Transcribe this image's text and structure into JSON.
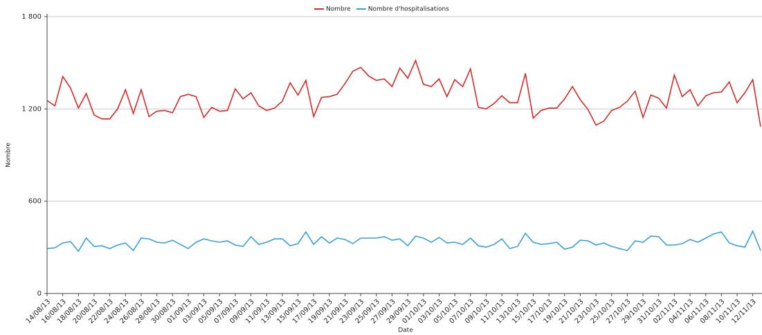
{
  "chart_data": {
    "type": "line",
    "x_label": "Date",
    "y_label": "Nombre",
    "categories": [
      "14/08/13",
      null,
      "16/08/13",
      null,
      "18/08/13",
      null,
      "20/08/13",
      null,
      "22/08/13",
      null,
      "24/08/13",
      null,
      "26/08/13",
      null,
      "28/08/13",
      null,
      "30/08/13",
      null,
      "01/09/13",
      null,
      "03/09/13",
      null,
      "05/09/13",
      null,
      "07/09/13",
      null,
      "09/09/13",
      null,
      "11/09/13",
      null,
      "13/09/13",
      null,
      "15/09/13",
      null,
      "17/09/13",
      null,
      "19/09/13",
      null,
      "21/09/13",
      null,
      "23/09/13",
      null,
      "25/09/13",
      null,
      "27/09/13",
      null,
      "29/09/13",
      null,
      "01/10/13",
      null,
      "03/10/13",
      null,
      "05/10/13",
      null,
      "07/10/13",
      null,
      "09/10/13",
      null,
      "11/10/13",
      null,
      "13/10/13",
      null,
      "15/10/13",
      null,
      "17/10/13",
      null,
      "19/10/13",
      null,
      "21/10/13",
      null,
      "23/10/13",
      null,
      "25/10/13",
      null,
      "27/10/13",
      null,
      "29/10/13",
      null,
      "31/10/13",
      null,
      "02/11/13",
      null,
      "04/11/13",
      null,
      "06/11/13",
      null,
      "08/11/13",
      null,
      "10/11/13",
      null,
      "12/11/13",
      null
    ],
    "series": [
      {
        "name": "Nombre",
        "color": "#d42a2a",
        "values": [
          1255,
          1220,
          1410,
          1335,
          1205,
          1300,
          1160,
          1135,
          1135,
          1200,
          1325,
          1170,
          1325,
          1150,
          1185,
          1190,
          1175,
          1280,
          1295,
          1280,
          1145,
          1210,
          1185,
          1190,
          1330,
          1265,
          1305,
          1220,
          1190,
          1205,
          1250,
          1370,
          1290,
          1385,
          1150,
          1275,
          1280,
          1295,
          1365,
          1445,
          1470,
          1415,
          1385,
          1395,
          1345,
          1465,
          1400,
          1515,
          1360,
          1345,
          1395,
          1280,
          1390,
          1345,
          1460,
          1210,
          1200,
          1235,
          1285,
          1240,
          1240,
          1430,
          1140,
          1190,
          1205,
          1205,
          1265,
          1345,
          1260,
          1195,
          1095,
          1120,
          1190,
          1210,
          1250,
          1315,
          1145,
          1290,
          1270,
          1205,
          1420,
          1280,
          1325,
          1220,
          1285,
          1305,
          1310,
          1375,
          1240,
          1305,
          1390,
          1085
        ]
      },
      {
        "name": "Nombre d'hospitalisations",
        "color": "#3a9fd6",
        "values": [
          292,
          297,
          328,
          337,
          274,
          360,
          306,
          310,
          292,
          315,
          328,
          279,
          360,
          355,
          333,
          328,
          346,
          319,
          292,
          333,
          355,
          342,
          333,
          342,
          315,
          306,
          369,
          319,
          333,
          355,
          355,
          310,
          324,
          400,
          319,
          369,
          328,
          360,
          351,
          324,
          360,
          360,
          360,
          369,
          346,
          355,
          310,
          373,
          360,
          333,
          364,
          328,
          333,
          319,
          360,
          310,
          301,
          319,
          355,
          292,
          306,
          391,
          333,
          319,
          324,
          333,
          288,
          301,
          346,
          342,
          315,
          328,
          306,
          292,
          279,
          342,
          333,
          373,
          369,
          315,
          315,
          324,
          351,
          333,
          360,
          387,
          400,
          328,
          310,
          301,
          405,
          279
        ]
      }
    ],
    "ylim": [
      0,
      1800
    ],
    "yticks": [
      0,
      600,
      {
        "value": 1200,
        "label": "1 200"
      },
      {
        "value": 1800,
        "label": "1 800"
      }
    ],
    "grid": true
  }
}
